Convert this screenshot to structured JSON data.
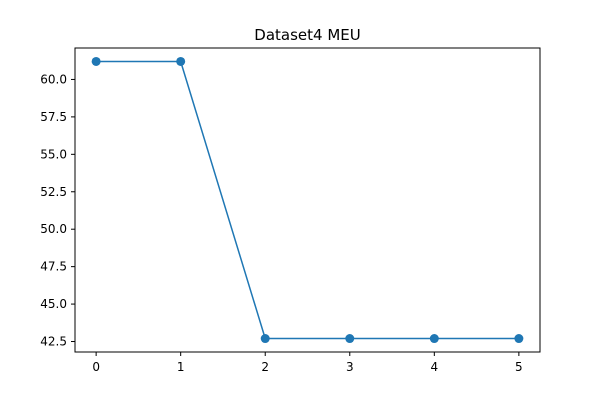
{
  "chart_data": {
    "type": "line",
    "title": "Dataset4 MEU",
    "xlabel": "",
    "ylabel": "",
    "x": [
      0,
      1,
      2,
      3,
      4,
      5
    ],
    "series": [
      {
        "values": [
          61.2,
          61.2,
          42.7,
          42.7,
          42.7,
          42.7
        ],
        "color": "#1f77b4",
        "marker": "circle"
      }
    ],
    "xlim": [
      -0.25,
      5.25
    ],
    "ylim": [
      41.8,
      62.1
    ],
    "xticks": [
      0,
      1,
      2,
      3,
      4,
      5
    ],
    "xtick_labels": [
      "0",
      "1",
      "2",
      "3",
      "4",
      "5"
    ],
    "yticks": [
      42.5,
      45.0,
      47.5,
      50.0,
      52.5,
      55.0,
      57.5,
      60.0
    ],
    "ytick_labels": [
      "42.5",
      "45.0",
      "47.5",
      "50.0",
      "52.5",
      "55.0",
      "57.5",
      "60.0"
    ],
    "grid": false,
    "legend": "none"
  }
}
